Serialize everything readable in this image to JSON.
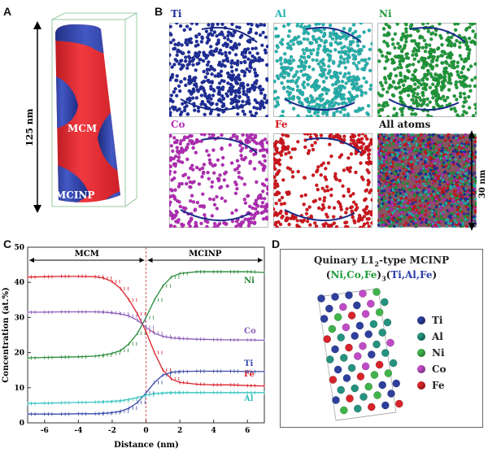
{
  "panels": {
    "a": {
      "letter": "A",
      "length_label": "125 nm",
      "region_mcm": "MCM",
      "region_mcinp": "MCINP",
      "colors": {
        "mcm": "#e8232c",
        "mcinp": "#2b3fa8"
      }
    },
    "b": {
      "letter": "B",
      "maps": [
        {
          "element": "Ti",
          "color": "#1f2f9c"
        },
        {
          "element": "Al",
          "color": "#27b4b0"
        },
        {
          "element": "Ni",
          "color": "#1f9a3a"
        },
        {
          "element": "Co",
          "color": "#b42db8"
        },
        {
          "element": "Fe",
          "color": "#d2161e"
        },
        {
          "element": "All atoms",
          "color": "#333333"
        }
      ],
      "scale_label": "30 nm"
    },
    "c": {
      "letter": "C",
      "region_left": "MCM",
      "region_right": "MCINP"
    },
    "d": {
      "letter": "D",
      "title_line1": "Quinary L1",
      "title_sub": "2",
      "title_line1_end": "-type MCINP",
      "formula": {
        "open": "(",
        "a": "Ni,Co,Fe",
        "close_mid": ")",
        "sub": "3",
        "open2": "(",
        "b": "Ti,Al,Fe",
        "close2": ")"
      },
      "legend": [
        {
          "label": "Ti",
          "color": "#2e3f9e"
        },
        {
          "label": "Al",
          "color": "#24927e"
        },
        {
          "label": "Ni",
          "color": "#3fb44a"
        },
        {
          "label": "Co",
          "color": "#c04bc6"
        },
        {
          "label": "Fe",
          "color": "#d8232a"
        }
      ]
    }
  },
  "chart_data": {
    "type": "line",
    "xlabel": "Distance (nm)",
    "ylabel": "Concentration (at.%)",
    "xlim": [
      -7,
      7
    ],
    "ylim": [
      0,
      50
    ],
    "xticks": [
      -6,
      -4,
      -2,
      0,
      2,
      4,
      6
    ],
    "yticks": [
      0,
      10,
      20,
      30,
      40,
      50
    ],
    "interface_x": 0,
    "series": [
      {
        "name": "Ni",
        "color": "#2a8a3a",
        "x": [
          -7,
          -6,
          -5,
          -4,
          -3,
          -2.5,
          -2,
          -1.5,
          -1,
          -0.5,
          0,
          0.5,
          1,
          1.5,
          2,
          3,
          4,
          5,
          6,
          7
        ],
        "y": [
          18.5,
          18.6,
          18.7,
          18.8,
          19.0,
          19.3,
          19.8,
          20.6,
          22.5,
          25.5,
          30,
          35,
          39,
          41.5,
          42.5,
          43,
          43,
          43,
          43,
          42.8
        ]
      },
      {
        "name": "Fe",
        "color": "#d8232a",
        "x": [
          -7,
          -6,
          -5,
          -4,
          -3,
          -2.5,
          -2,
          -1.5,
          -1,
          -0.5,
          0,
          0.5,
          1,
          1.5,
          2,
          3,
          4,
          5,
          6,
          7
        ],
        "y": [
          41.5,
          41.6,
          41.7,
          41.7,
          41.6,
          41.2,
          40.2,
          38.2,
          35,
          31,
          26,
          20,
          15,
          12.5,
          11.5,
          11,
          10.8,
          10.8,
          10.6,
          10.5
        ]
      },
      {
        "name": "Co",
        "color": "#8a5cb8",
        "x": [
          -7,
          -6,
          -5,
          -4,
          -3,
          -2.5,
          -2,
          -1.5,
          -1,
          -0.5,
          0,
          0.5,
          1,
          1.5,
          2,
          3,
          4,
          5,
          6,
          7
        ],
        "y": [
          31.5,
          31.5,
          31.6,
          31.6,
          31.6,
          31.5,
          31.3,
          31,
          30.4,
          29.2,
          27.2,
          25.5,
          24.6,
          24.2,
          24,
          23.8,
          23.7,
          23.6,
          23.6,
          23.5
        ]
      },
      {
        "name": "Ti",
        "color": "#3a4aa8",
        "x": [
          -7,
          -6,
          -5,
          -4,
          -3,
          -2.5,
          -2,
          -1.5,
          -1,
          -0.5,
          0,
          0.5,
          1,
          1.5,
          2,
          3,
          4,
          5,
          6,
          7
        ],
        "y": [
          2.5,
          2.5,
          2.5,
          2.6,
          2.6,
          2.7,
          2.9,
          3.3,
          4.2,
          5.8,
          8.5,
          11.5,
          13.6,
          14.4,
          14.6,
          14.7,
          14.7,
          14.7,
          14.6,
          14.6
        ]
      },
      {
        "name": "Al",
        "color": "#38c4c0",
        "x": [
          -7,
          -6,
          -5,
          -4,
          -3,
          -2.5,
          -2,
          -1.5,
          -1,
          -0.5,
          0,
          0.5,
          1,
          1.5,
          2,
          3,
          4,
          5,
          6,
          7
        ],
        "y": [
          5.5,
          5.6,
          5.7,
          5.8,
          5.9,
          6.0,
          6.1,
          6.3,
          6.7,
          7.2,
          7.9,
          8.3,
          8.5,
          8.6,
          8.6,
          8.6,
          8.6,
          8.6,
          8.6,
          8.6
        ]
      }
    ]
  }
}
